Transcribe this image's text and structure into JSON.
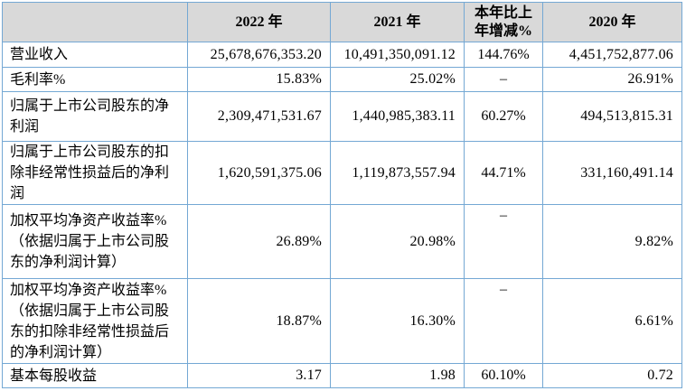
{
  "colors": {
    "border": "#74a8d4",
    "header_bg": "#d9d9d9",
    "text": "#000000",
    "page_bg": "#ffffff"
  },
  "table": {
    "headers": {
      "label": "",
      "y2022": "2022 年",
      "y2021": "2021 年",
      "change": "本年比上\n年增减%",
      "y2020": "2020 年"
    },
    "rows": [
      {
        "label": "营业收入",
        "y2022": "25,678,676,353.20",
        "y2021": "10,491,350,091.12",
        "change": "144.76%",
        "y2020": "4,451,752,877.06"
      },
      {
        "label": "毛利率%",
        "y2022": "15.83%",
        "y2021": "25.02%",
        "change": "–",
        "y2020": "26.91%"
      },
      {
        "label": "归属于上市公司股东的净\n利润",
        "y2022": "2,309,471,531.67",
        "y2021": "1,440,985,383.11",
        "change": "60.27%",
        "y2020": "494,513,815.31"
      },
      {
        "label": "归属于上市公司股东的扣\n除非经常性损益后的净利\n润",
        "y2022": "1,620,591,375.06",
        "y2021": "1,119,873,557.94",
        "change": "44.71%",
        "y2020": "331,160,491.14"
      },
      {
        "label": "加权平均净资产收益率%\n（依据归属于上市公司股\n东的净利润计算）",
        "y2022": "26.89%",
        "y2021": "20.98%",
        "change": "–",
        "y2020": "9.82%"
      },
      {
        "label": "加权平均净资产收益率%\n（依据归属于上市公司股\n东的扣除非经常性损益后\n的净利润计算）",
        "y2022": "18.87%",
        "y2021": "16.30%",
        "change": "–",
        "y2020": "6.61%"
      },
      {
        "label": "基本每股收益",
        "y2022": "3.17",
        "y2021": "1.98",
        "change": "60.10%",
        "y2020": "0.72"
      }
    ]
  }
}
